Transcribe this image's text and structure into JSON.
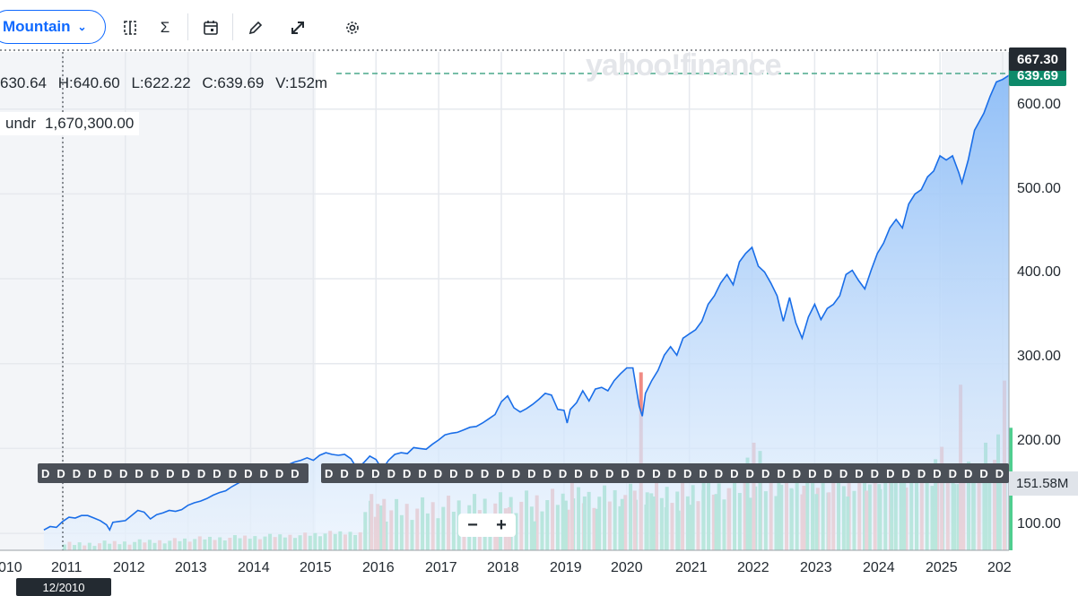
{
  "toolbar": {
    "chart_type": "Mountain",
    "icons": [
      "compare-icon",
      "indicators-icon",
      "events-calendar-icon",
      "draw-pencil-icon",
      "fullscreen-expand-icon",
      "settings-gear-icon"
    ]
  },
  "watermark": "yahoo!finance",
  "ohlc": {
    "open": "630.64",
    "high": "H:640.60",
    "low": "L:622.22",
    "close": "C:639.69",
    "volume": "V:152m"
  },
  "volume_label": {
    "name": "undr",
    "value": "1,670,300.00"
  },
  "tags": {
    "high": "667.30",
    "last": "639.69",
    "volume": "151.58M"
  },
  "y_axis_ticks": [
    "600.00",
    "500.00",
    "400.00",
    "300.00",
    "200.00",
    "100.00"
  ],
  "x_axis_ticks": [
    "010",
    "2011",
    "2012",
    "2013",
    "2014",
    "2015",
    "2016",
    "2017",
    "2018",
    "2019",
    "2020",
    "2021",
    "2022",
    "2023",
    "2024",
    "2025",
    "202"
  ],
  "cursor_date": "12/2010",
  "event_marker": "D",
  "colors": {
    "accent": "#0f69ff",
    "line": "#1a6ee8",
    "fill_top": "#8dbdf7",
    "up": "#4fce8f",
    "down": "#f08b84",
    "last": "#0d8a6a"
  },
  "chart_data": {
    "type": "area",
    "ylim": [
      80,
      667.3
    ],
    "xlim": [
      2010.0,
      2026.1
    ],
    "series": [
      {
        "values": [
          [
            2010.7,
            104
          ],
          [
            2010.8,
            108
          ],
          [
            2010.9,
            107
          ],
          [
            2011.0,
            114
          ],
          [
            2011.1,
            119
          ],
          [
            2011.2,
            118
          ],
          [
            2011.3,
            121
          ],
          [
            2011.4,
            121
          ],
          [
            2011.5,
            118
          ],
          [
            2011.6,
            115
          ],
          [
            2011.7,
            110
          ],
          [
            2011.75,
            104
          ],
          [
            2011.8,
            113
          ],
          [
            2011.9,
            114
          ],
          [
            2012.0,
            115
          ],
          [
            2012.1,
            121
          ],
          [
            2012.2,
            127
          ],
          [
            2012.3,
            125
          ],
          [
            2012.4,
            117
          ],
          [
            2012.5,
            122
          ],
          [
            2012.6,
            124
          ],
          [
            2012.7,
            127
          ],
          [
            2012.8,
            126
          ],
          [
            2012.9,
            128
          ],
          [
            2013.0,
            133
          ],
          [
            2013.1,
            136
          ],
          [
            2013.2,
            138
          ],
          [
            2013.3,
            141
          ],
          [
            2013.4,
            145
          ],
          [
            2013.5,
            148
          ],
          [
            2013.6,
            150
          ],
          [
            2013.7,
            155
          ],
          [
            2013.8,
            159
          ],
          [
            2013.9,
            163
          ],
          [
            2014.0,
            167
          ],
          [
            2014.1,
            168
          ],
          [
            2014.2,
            172
          ],
          [
            2014.3,
            174
          ],
          [
            2014.4,
            177
          ],
          [
            2014.5,
            180
          ],
          [
            2014.6,
            181
          ],
          [
            2014.7,
            184
          ],
          [
            2014.8,
            186
          ],
          [
            2014.9,
            189
          ],
          [
            2015.0,
            186
          ],
          [
            2015.1,
            192
          ],
          [
            2015.2,
            195
          ],
          [
            2015.3,
            193
          ],
          [
            2015.4,
            192
          ],
          [
            2015.5,
            193
          ],
          [
            2015.6,
            188
          ],
          [
            2015.7,
            176
          ],
          [
            2015.8,
            183
          ],
          [
            2015.9,
            191
          ],
          [
            2016.0,
            187
          ],
          [
            2016.1,
            175
          ],
          [
            2016.2,
            186
          ],
          [
            2016.3,
            193
          ],
          [
            2016.4,
            195
          ],
          [
            2016.5,
            194
          ],
          [
            2016.6,
            201
          ],
          [
            2016.7,
            200
          ],
          [
            2016.8,
            199
          ],
          [
            2016.9,
            205
          ],
          [
            2017.0,
            210
          ],
          [
            2017.1,
            216
          ],
          [
            2017.2,
            218
          ],
          [
            2017.3,
            219
          ],
          [
            2017.4,
            222
          ],
          [
            2017.5,
            225
          ],
          [
            2017.6,
            226
          ],
          [
            2017.7,
            230
          ],
          [
            2017.8,
            235
          ],
          [
            2017.9,
            240
          ],
          [
            2018.0,
            255
          ],
          [
            2018.1,
            262
          ],
          [
            2018.2,
            248
          ],
          [
            2018.3,
            243
          ],
          [
            2018.4,
            247
          ],
          [
            2018.5,
            252
          ],
          [
            2018.6,
            258
          ],
          [
            2018.7,
            265
          ],
          [
            2018.8,
            263
          ],
          [
            2018.9,
            246
          ],
          [
            2019.0,
            245
          ],
          [
            2019.05,
            230
          ],
          [
            2019.1,
            246
          ],
          [
            2019.2,
            254
          ],
          [
            2019.3,
            268
          ],
          [
            2019.4,
            256
          ],
          [
            2019.5,
            270
          ],
          [
            2019.6,
            272
          ],
          [
            2019.7,
            268
          ],
          [
            2019.8,
            280
          ],
          [
            2019.9,
            288
          ],
          [
            2020.0,
            295
          ],
          [
            2020.1,
            295
          ],
          [
            2020.2,
            250
          ],
          [
            2020.25,
            238
          ],
          [
            2020.3,
            265
          ],
          [
            2020.4,
            280
          ],
          [
            2020.5,
            292
          ],
          [
            2020.6,
            310
          ],
          [
            2020.7,
            320
          ],
          [
            2020.8,
            310
          ],
          [
            2020.9,
            330
          ],
          [
            2021.0,
            335
          ],
          [
            2021.1,
            340
          ],
          [
            2021.2,
            350
          ],
          [
            2021.3,
            370
          ],
          [
            2021.4,
            380
          ],
          [
            2021.5,
            395
          ],
          [
            2021.6,
            405
          ],
          [
            2021.7,
            393
          ],
          [
            2021.8,
            420
          ],
          [
            2021.9,
            430
          ],
          [
            2022.0,
            437
          ],
          [
            2022.1,
            415
          ],
          [
            2022.2,
            408
          ],
          [
            2022.3,
            395
          ],
          [
            2022.4,
            380
          ],
          [
            2022.5,
            350
          ],
          [
            2022.6,
            378
          ],
          [
            2022.7,
            348
          ],
          [
            2022.8,
            330
          ],
          [
            2022.9,
            355
          ],
          [
            2023.0,
            370
          ],
          [
            2023.1,
            352
          ],
          [
            2023.2,
            365
          ],
          [
            2023.3,
            370
          ],
          [
            2023.4,
            380
          ],
          [
            2023.5,
            405
          ],
          [
            2023.6,
            410
          ],
          [
            2023.7,
            398
          ],
          [
            2023.8,
            388
          ],
          [
            2023.9,
            410
          ],
          [
            2024.0,
            430
          ],
          [
            2024.1,
            442
          ],
          [
            2024.2,
            460
          ],
          [
            2024.3,
            470
          ],
          [
            2024.4,
            460
          ],
          [
            2024.5,
            488
          ],
          [
            2024.6,
            500
          ],
          [
            2024.7,
            505
          ],
          [
            2024.8,
            520
          ],
          [
            2024.9,
            527
          ],
          [
            2025.0,
            545
          ],
          [
            2025.1,
            540
          ],
          [
            2025.2,
            545
          ],
          [
            2025.3,
            525
          ],
          [
            2025.35,
            513
          ],
          [
            2025.45,
            540
          ],
          [
            2025.55,
            575
          ],
          [
            2025.7,
            595
          ],
          [
            2025.8,
            615
          ],
          [
            2025.9,
            632
          ],
          [
            2026.0,
            635
          ],
          [
            2026.1,
            639.69
          ]
        ]
      }
    ],
    "volume_ylim": [
      0,
      151.58
    ],
    "volume_bars": [
      [
        2015.9,
        false,
        68
      ],
      [
        2016.0,
        false,
        56
      ],
      [
        2016.1,
        false,
        62
      ],
      [
        2017.9,
        false,
        38
      ],
      [
        2018.1,
        false,
        52
      ],
      [
        2018.5,
        true,
        35
      ],
      [
        2019.0,
        true,
        60
      ],
      [
        2019.1,
        false,
        97
      ],
      [
        2019.3,
        true,
        65
      ],
      [
        2019.5,
        true,
        50
      ],
      [
        2019.9,
        true,
        62
      ],
      [
        2020.1,
        false,
        72
      ],
      [
        2020.2,
        false,
        215
      ],
      [
        2020.3,
        true,
        70
      ],
      [
        2020.4,
        true,
        65
      ],
      [
        2020.6,
        true,
        52
      ],
      [
        2020.8,
        true,
        48
      ],
      [
        2021.0,
        true,
        55
      ],
      [
        2021.2,
        true,
        82
      ],
      [
        2021.4,
        true,
        68
      ],
      [
        2021.6,
        false,
        75
      ],
      [
        2021.9,
        true,
        112
      ],
      [
        2022.0,
        false,
        130
      ],
      [
        2022.1,
        true,
        120
      ],
      [
        2022.4,
        true,
        88
      ],
      [
        2022.6,
        true,
        75
      ],
      [
        2022.8,
        false,
        78
      ],
      [
        2023.0,
        true,
        68
      ],
      [
        2023.2,
        false,
        70
      ],
      [
        2023.5,
        true,
        65
      ],
      [
        2023.8,
        false,
        72
      ],
      [
        2024.0,
        true,
        80
      ],
      [
        2024.2,
        true,
        90
      ],
      [
        2024.4,
        true,
        88
      ],
      [
        2024.6,
        true,
        70
      ],
      [
        2024.9,
        true,
        110
      ],
      [
        2025.0,
        false,
        125
      ],
      [
        2025.2,
        true,
        80
      ],
      [
        2025.3,
        false,
        200
      ],
      [
        2025.5,
        true,
        95
      ],
      [
        2025.7,
        true,
        130
      ],
      [
        2025.9,
        true,
        140
      ],
      [
        2026.0,
        false,
        205
      ],
      [
        2026.1,
        true,
        148
      ]
    ]
  }
}
